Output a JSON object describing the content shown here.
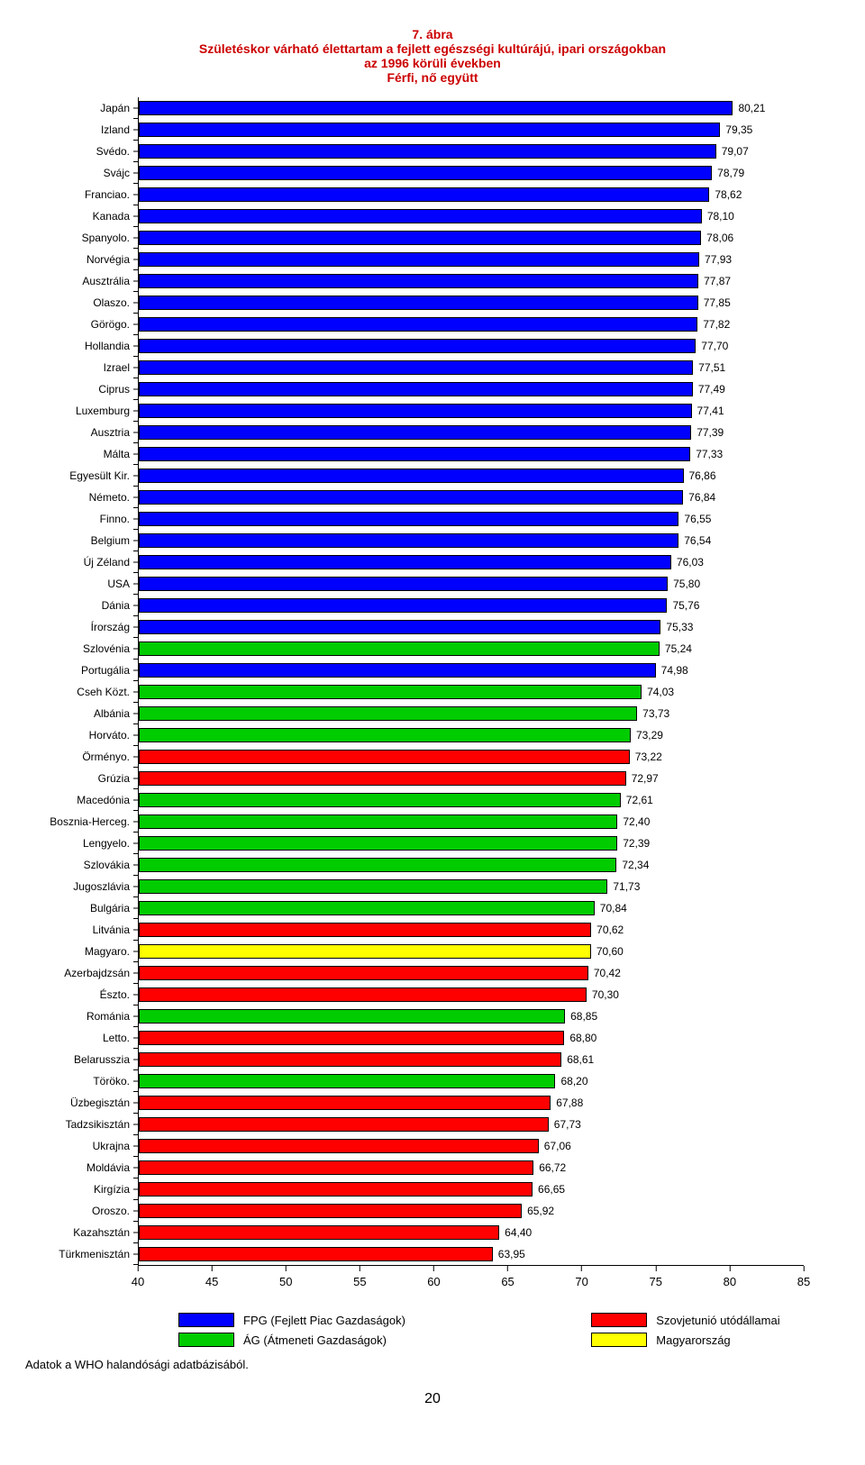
{
  "title": {
    "l1": "7. ábra",
    "l2": "Születéskor várható élettartam a fejlett egészségi kultúrájú, ipari országokban",
    "l3": "az 1996 körüli években",
    "l4": "Férfi, nő együtt",
    "fontsize": 14,
    "color": "#cc0000"
  },
  "axis": {
    "xmin": 40,
    "xmax": 85,
    "ticks": [
      40,
      45,
      50,
      55,
      60,
      65,
      70,
      75,
      80,
      85
    ],
    "fontsize": 13
  },
  "style": {
    "cat_fontsize": 12,
    "val_fontsize": 12,
    "bar_border": "#000000"
  },
  "colors": {
    "FPG": "#0000ff",
    "AG": "#00cc00",
    "SU": "#ff0000",
    "HU": "#ffff00"
  },
  "legend": {
    "fpg": "FPG (Fejlett Piac Gazdaságok)",
    "ag": "ÁG (Átmeneti Gazdaságok)",
    "su": "Szovjetunió utódállamai",
    "hu": "Magyarország",
    "fontsize": 13
  },
  "source": {
    "text": "Adatok a WHO halandósági adatbázisából.",
    "fontsize": 13
  },
  "pagenum": "20",
  "rows": [
    {
      "label": "Japán",
      "value": 80.21,
      "v": "80,21",
      "group": "FPG"
    },
    {
      "label": "Izland",
      "value": 79.35,
      "v": "79,35",
      "group": "FPG"
    },
    {
      "label": "Svédo.",
      "value": 79.07,
      "v": "79,07",
      "group": "FPG"
    },
    {
      "label": "Svájc",
      "value": 78.79,
      "v": "78,79",
      "group": "FPG"
    },
    {
      "label": "Franciao.",
      "value": 78.62,
      "v": "78,62",
      "group": "FPG"
    },
    {
      "label": "Kanada",
      "value": 78.1,
      "v": "78,10",
      "group": "FPG"
    },
    {
      "label": "Spanyolo.",
      "value": 78.06,
      "v": "78,06",
      "group": "FPG"
    },
    {
      "label": "Norvégia",
      "value": 77.93,
      "v": "77,93",
      "group": "FPG"
    },
    {
      "label": "Ausztrália",
      "value": 77.87,
      "v": "77,87",
      "group": "FPG"
    },
    {
      "label": "Olaszo.",
      "value": 77.85,
      "v": "77,85",
      "group": "FPG"
    },
    {
      "label": "Görögo.",
      "value": 77.82,
      "v": "77,82",
      "group": "FPG"
    },
    {
      "label": "Hollandia",
      "value": 77.7,
      "v": "77,70",
      "group": "FPG"
    },
    {
      "label": "Izrael",
      "value": 77.51,
      "v": "77,51",
      "group": "FPG"
    },
    {
      "label": "Ciprus",
      "value": 77.49,
      "v": "77,49",
      "group": "FPG"
    },
    {
      "label": "Luxemburg",
      "value": 77.41,
      "v": "77,41",
      "group": "FPG"
    },
    {
      "label": "Ausztria",
      "value": 77.39,
      "v": "77,39",
      "group": "FPG"
    },
    {
      "label": "Málta",
      "value": 77.33,
      "v": "77,33",
      "group": "FPG"
    },
    {
      "label": "Egyesült Kir.",
      "value": 76.86,
      "v": "76,86",
      "group": "FPG"
    },
    {
      "label": "Németo.",
      "value": 76.84,
      "v": "76,84",
      "group": "FPG"
    },
    {
      "label": "Finno.",
      "value": 76.55,
      "v": "76,55",
      "group": "FPG"
    },
    {
      "label": "Belgium",
      "value": 76.54,
      "v": "76,54",
      "group": "FPG"
    },
    {
      "label": "Új Zéland",
      "value": 76.03,
      "v": "76,03",
      "group": "FPG"
    },
    {
      "label": "USA",
      "value": 75.8,
      "v": "75,80",
      "group": "FPG"
    },
    {
      "label": "Dánia",
      "value": 75.76,
      "v": "75,76",
      "group": "FPG"
    },
    {
      "label": "Írország",
      "value": 75.33,
      "v": "75,33",
      "group": "FPG"
    },
    {
      "label": "Szlovénia",
      "value": 75.24,
      "v": "75,24",
      "group": "AG"
    },
    {
      "label": "Portugália",
      "value": 74.98,
      "v": "74,98",
      "group": "FPG"
    },
    {
      "label": "Cseh Közt.",
      "value": 74.03,
      "v": "74,03",
      "group": "AG"
    },
    {
      "label": "Albánia",
      "value": 73.73,
      "v": "73,73",
      "group": "AG"
    },
    {
      "label": "Horváto.",
      "value": 73.29,
      "v": "73,29",
      "group": "AG"
    },
    {
      "label": "Örményo.",
      "value": 73.22,
      "v": "73,22",
      "group": "SU"
    },
    {
      "label": "Grúzia",
      "value": 72.97,
      "v": "72,97",
      "group": "SU"
    },
    {
      "label": "Macedónia",
      "value": 72.61,
      "v": "72,61",
      "group": "AG"
    },
    {
      "label": "Bosznia-Herceg.",
      "value": 72.4,
      "v": "72,40",
      "group": "AG"
    },
    {
      "label": "Lengyelo.",
      "value": 72.39,
      "v": "72,39",
      "group": "AG"
    },
    {
      "label": "Szlovákia",
      "value": 72.34,
      "v": "72,34",
      "group": "AG"
    },
    {
      "label": "Jugoszlávia",
      "value": 71.73,
      "v": "71,73",
      "group": "AG"
    },
    {
      "label": "Bulgária",
      "value": 70.84,
      "v": "70,84",
      "group": "AG"
    },
    {
      "label": "Litvánia",
      "value": 70.62,
      "v": "70,62",
      "group": "SU"
    },
    {
      "label": "Magyaro.",
      "value": 70.6,
      "v": "70,60",
      "group": "HU"
    },
    {
      "label": "Azerbajdzsán",
      "value": 70.42,
      "v": "70,42",
      "group": "SU"
    },
    {
      "label": "Észto.",
      "value": 70.3,
      "v": "70,30",
      "group": "SU"
    },
    {
      "label": "Románia",
      "value": 68.85,
      "v": "68,85",
      "group": "AG"
    },
    {
      "label": "Letto.",
      "value": 68.8,
      "v": "68,80",
      "group": "SU"
    },
    {
      "label": "Belarusszia",
      "value": 68.61,
      "v": "68,61",
      "group": "SU"
    },
    {
      "label": "Töröko.",
      "value": 68.2,
      "v": "68,20",
      "group": "AG"
    },
    {
      "label": "Üzbegisztán",
      "value": 67.88,
      "v": "67,88",
      "group": "SU"
    },
    {
      "label": "Tadzsikisztán",
      "value": 67.73,
      "v": "67,73",
      "group": "SU"
    },
    {
      "label": "Ukrajna",
      "value": 67.06,
      "v": "67,06",
      "group": "SU"
    },
    {
      "label": "Moldávia",
      "value": 66.72,
      "v": "66,72",
      "group": "SU"
    },
    {
      "label": "Kirgízia",
      "value": 66.65,
      "v": "66,65",
      "group": "SU"
    },
    {
      "label": "Oroszo.",
      "value": 65.92,
      "v": "65,92",
      "group": "SU"
    },
    {
      "label": "Kazahsztán",
      "value": 64.4,
      "v": "64,40",
      "group": "SU"
    },
    {
      "label": "Türkmenisztán",
      "value": 63.95,
      "v": "63,95",
      "group": "SU"
    }
  ]
}
